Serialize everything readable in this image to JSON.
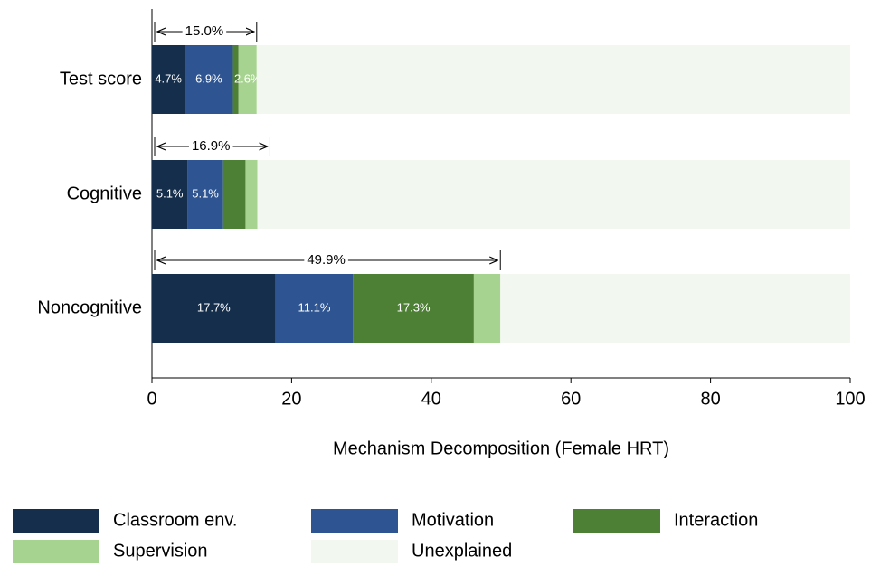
{
  "chart_data": {
    "type": "stacked-bar",
    "orientation": "horizontal",
    "categories": [
      "Test score",
      "Cognitive",
      "Noncognitive"
    ],
    "series": [
      {
        "name": "Classroom env.",
        "color": "#152e4b",
        "values": [
          4.7,
          5.1,
          17.7
        ],
        "value_labels": [
          "4.7%",
          "5.1%",
          "17.7%"
        ]
      },
      {
        "name": "Motivation",
        "color": "#2e5591",
        "values": [
          6.9,
          5.1,
          11.1
        ],
        "value_labels": [
          "6.9%",
          "5.1%",
          "11.1%"
        ]
      },
      {
        "name": "Interaction",
        "color": "#4d7f35",
        "values": [
          0.8,
          3.2,
          17.3
        ],
        "value_labels": [
          null,
          null,
          "17.3%"
        ]
      },
      {
        "name": "Supervision",
        "color": "#a6d38f",
        "values": [
          2.6,
          1.7,
          3.8
        ],
        "value_labels": [
          "2.6%",
          null,
          null
        ]
      },
      {
        "name": "Unexplained",
        "color": "#f2f8f0",
        "values": [
          85.0,
          84.9,
          50.1
        ],
        "value_labels": [
          null,
          null,
          null
        ]
      }
    ],
    "totals": {
      "values": [
        15.0,
        16.9,
        49.9
      ],
      "labels": [
        "15.0%",
        "16.9%",
        "49.9%"
      ]
    },
    "xlabel": "Mechanism Decomposition (Female HRT)",
    "xlim": [
      0,
      100
    ],
    "xticks": [
      0,
      20,
      40,
      60,
      80,
      100
    ],
    "grid": false,
    "legend": "bottom"
  }
}
